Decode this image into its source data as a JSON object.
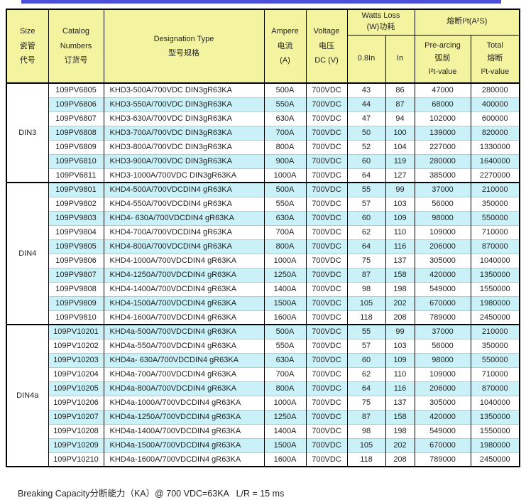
{
  "colors": {
    "header_bg": "#f4f4a0",
    "row_alt_bg": "#c9f1f7",
    "top_bar": "#4d4fd9",
    "grid": "#000000"
  },
  "footer": "Breaking Capacity分断能力（KA）@ 700 VDC=63KA   L/R = 15 ms",
  "table": {
    "header": {
      "size": "Size\n瓷管\n代号",
      "catalog": "Catalog\nNumbers\n订货号",
      "designation": "Designation Type\n型号规格",
      "ampere": "Ampere\n电流\n(A)",
      "voltage": "Voltage\n电压\nDC (V)",
      "watts_loss": "Watts Loss\n(W)功耗",
      "i2t": "熔断I²t(A²S)",
      "w_08in": "0.8In",
      "w_in": "In",
      "pre_arcing": "Pre-arcing\n弧前\nI²t-value",
      "total": "Total\n熔断\nI²t-value"
    },
    "sections": [
      {
        "size": "DIN3",
        "rows": [
          [
            "109PV6805",
            "KHD3-500A/700VDC DIN3gR63KA",
            "500A",
            "700VDC",
            "43",
            "86",
            "47000",
            "280000"
          ],
          [
            "109PV6806",
            "KHD3-550A/700VDC DIN3gR63KA",
            "550A",
            "700VDC",
            "44",
            "87",
            "68000",
            "400000"
          ],
          [
            "109PV6807",
            "KHD3-630A/700VDC DIN3gR63KA",
            "630A",
            "700VDC",
            "47",
            "94",
            "102000",
            "600000"
          ],
          [
            "109PV6808",
            "KHD3-700A/700VDC DIN3gR63KA",
            "700A",
            "700VDC",
            "50",
            "100",
            "139000",
            "820000"
          ],
          [
            "109PV6809",
            "KHD3-800A/700VDC DIN3gR63KA",
            "800A",
            "700VDC",
            "52",
            "104",
            "227000",
            "1330000"
          ],
          [
            "109PV6810",
            "KHD3-900A/700VDC DIN3gR63KA",
            "900A",
            "700VDC",
            "60",
            "119",
            "280000",
            "1640000"
          ],
          [
            "109PV6811",
            "KHD3-1000A/700VDC DIN3gR63KA",
            "1000A",
            "700VDC",
            "64",
            "127",
            "385000",
            "2270000"
          ]
        ]
      },
      {
        "size": "DIN4",
        "rows": [
          [
            "109PV9801",
            "KHD4-500A/700VDCDIN4 gR63KA",
            "500A",
            "700VDC",
            "55",
            "99",
            "37000",
            "210000"
          ],
          [
            "109PV9802",
            "KHD4-550A/700VDCDIN4 gR63KA",
            "550A",
            "700VDC",
            "57",
            "103",
            "56000",
            "350000"
          ],
          [
            "109PV9803",
            "KHD4- 630A/700VDCDIN4 gR63KA",
            "630A",
            "700VDC",
            "60",
            "109",
            "98000",
            "550000"
          ],
          [
            "109PV9804",
            "KHD4-700A/700VDCDIN4 gR63KA",
            "700A",
            "700VDC",
            "62",
            "110",
            "109000",
            "710000"
          ],
          [
            "109PV9805",
            "KHD4-800A/700VDCDIN4 gR63KA",
            "800A",
            "700VDC",
            "64",
            "116",
            "206000",
            "870000"
          ],
          [
            "109PV9806",
            "KHD4-1000A/700VDCDIN4 gR63KA",
            "1000A",
            "700VDC",
            "75",
            "137",
            "305000",
            "1040000"
          ],
          [
            "109PV9807",
            "KHD4-1250A/700VDCDIN4 gR63KA",
            "1250A",
            "700VDC",
            "87",
            "158",
            "420000",
            "1350000"
          ],
          [
            "109PV9808",
            "KHD4-1400A/700VDCDIN4 gR63KA",
            "1400A",
            "700VDC",
            "98",
            "198",
            "549000",
            "1550000"
          ],
          [
            "109PV9809",
            "KHD4-1500A/700VDCDIN4 gR63KA",
            "1500A",
            "700VDC",
            "105",
            "202",
            "670000",
            "1980000"
          ],
          [
            "109PV9810",
            "KHD4-1600A/700VDCDIN4 gR63KA",
            "1600A",
            "700VDC",
            "118",
            "208",
            "789000",
            "2450000"
          ]
        ]
      },
      {
        "size": "DIN4a",
        "rows": [
          [
            "109PV10201",
            "KHD4a-500A/700VDCDIN4 gR63KA",
            "500A",
            "700VDC",
            "55",
            "99",
            "37000",
            "210000"
          ],
          [
            "109PV10202",
            "KHD4a-550A/700VDCDIN4 gR63KA",
            "550A",
            "700VDC",
            "57",
            "103",
            "56000",
            "350000"
          ],
          [
            "109PV10203",
            "KHD4a- 630A/700VDCDIN4 gR63KA",
            "630A",
            "700VDC",
            "60",
            "109",
            "98000",
            "550000"
          ],
          [
            "109PV10204",
            "KHD4a-700A/700VDCDIN4 gR63KA",
            "700A",
            "700VDC",
            "62",
            "110",
            "109000",
            "710000"
          ],
          [
            "109PV10205",
            "KHD4a-800A/700VDCDIN4 gR63KA",
            "800A",
            "700VDC",
            "64",
            "116",
            "206000",
            "870000"
          ],
          [
            "109PV10206",
            "KHD4a-1000A/700VDCDIN4 gR63KA",
            "1000A",
            "700VDC",
            "75",
            "137",
            "305000",
            "1040000"
          ],
          [
            "109PV10207",
            "KHD4a-1250A/700VDCDIN4 gR63KA",
            "1250A",
            "700VDC",
            "87",
            "158",
            "420000",
            "1350000"
          ],
          [
            "109PV10208",
            "KHD4a-1400A/700VDCDIN4 gR63KA",
            "1400A",
            "700VDC",
            "98",
            "198",
            "549000",
            "1550000"
          ],
          [
            "109PV10209",
            "KHD4a-1500A/700VDCDIN4 gR63KA",
            "1500A",
            "700VDC",
            "105",
            "202",
            "670000",
            "1980000"
          ],
          [
            "109PV10210",
            "KHD4a-1600A/700VDCDIN4 gR63KA",
            "1600A",
            "700VDC",
            "118",
            "208",
            "789000",
            "2450000"
          ]
        ]
      }
    ]
  }
}
